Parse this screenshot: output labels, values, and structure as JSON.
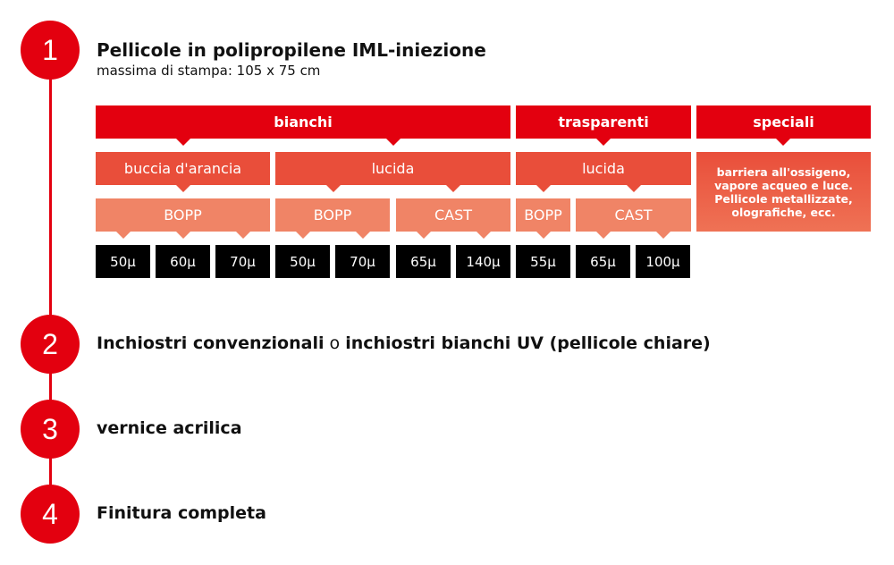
{
  "colors": {
    "red": "#e3000f",
    "orange": "#e94e3a",
    "salmon": "#f08466",
    "black": "#000000"
  },
  "steps": [
    {
      "number": "1",
      "title": "Pellicole in polipropilene IML-iniezione",
      "subtitle": "massima di stampa: 105 x 75 cm"
    },
    {
      "number": "2",
      "title_bold_1": "Inchiostri convenzionali",
      "connector": " o ",
      "title_bold_2": "inchiostri bianchi UV (pellicole chiare)"
    },
    {
      "number": "3",
      "title": "vernice acrilica"
    },
    {
      "number": "4",
      "title": "Finitura completa"
    }
  ],
  "tree": {
    "categories": [
      "bianchi",
      "trasparenti",
      "speciali"
    ],
    "finishes": [
      "buccia d'arancia",
      "lucida",
      "lucida"
    ],
    "speciali_text": "barriera all'ossigeno, vapore acqueo e luce. Pellicole metallizzate, olografiche, ecc.",
    "materials": [
      "BOPP",
      "BOPP",
      "CAST",
      "BOPP",
      "CAST"
    ],
    "thicknesses": [
      "50µ",
      "60µ",
      "70µ",
      "50µ",
      "70µ",
      "65µ",
      "140µ",
      "55µ",
      "65µ",
      "100µ"
    ]
  }
}
